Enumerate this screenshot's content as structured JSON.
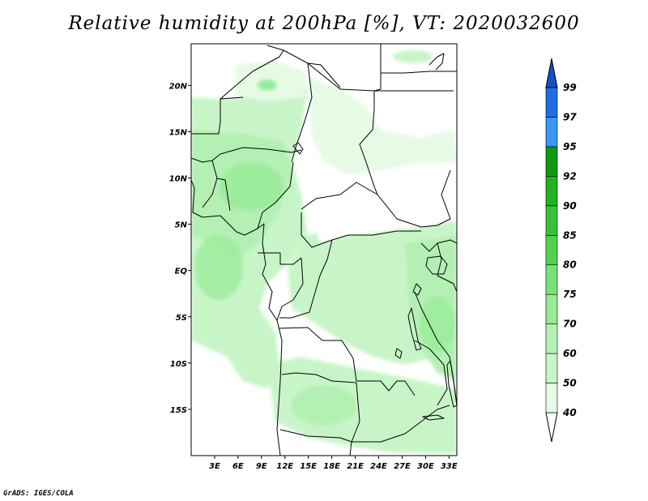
{
  "title": "Relative humidity at 200hPa [%], VT: 2020032600",
  "credit": "GrADS: IGES/COLA",
  "map": {
    "lon_range": [
      0,
      34
    ],
    "lat_range": [
      -20,
      24.5
    ],
    "lat_ticks": [
      {
        "value": 20,
        "label": "20N"
      },
      {
        "value": 15,
        "label": "15N"
      },
      {
        "value": 10,
        "label": "10N"
      },
      {
        "value": 5,
        "label": "5N"
      },
      {
        "value": 0,
        "label": "EQ"
      },
      {
        "value": -5,
        "label": "5S"
      },
      {
        "value": -10,
        "label": "10S"
      },
      {
        "value": -15,
        "label": "15S"
      }
    ],
    "lon_ticks": [
      {
        "value": 3,
        "label": "3E"
      },
      {
        "value": 6,
        "label": "6E"
      },
      {
        "value": 9,
        "label": "9E"
      },
      {
        "value": 12,
        "label": "12E"
      },
      {
        "value": 15,
        "label": "15E"
      },
      {
        "value": 18,
        "label": "18E"
      },
      {
        "value": 21,
        "label": "21E"
      },
      {
        "value": 24,
        "label": "24E"
      },
      {
        "value": 27,
        "label": "27E"
      },
      {
        "value": 30,
        "label": "30E"
      },
      {
        "value": 33,
        "label": "33E"
      }
    ]
  },
  "colorbar": {
    "levels": [
      {
        "label": "40",
        "color": "#e6fae6"
      },
      {
        "label": "50",
        "color": "#c8f5c8"
      },
      {
        "label": "60",
        "color": "#b4f0b4"
      },
      {
        "label": "70",
        "color": "#96eb96"
      },
      {
        "label": "75",
        "color": "#78e178"
      },
      {
        "label": "80",
        "color": "#50d250"
      },
      {
        "label": "85",
        "color": "#37c337"
      },
      {
        "label": "90",
        "color": "#1eb41e"
      },
      {
        "label": "92",
        "color": "#0f9b0f"
      },
      {
        "label": "95",
        "color": "#3c96f5"
      },
      {
        "label": "97",
        "color": "#1e6ee6"
      },
      {
        "label": "99",
        "color": "#1450c8"
      }
    ],
    "bottom_color": "#ffffff",
    "top_color": "#1450c8"
  }
}
